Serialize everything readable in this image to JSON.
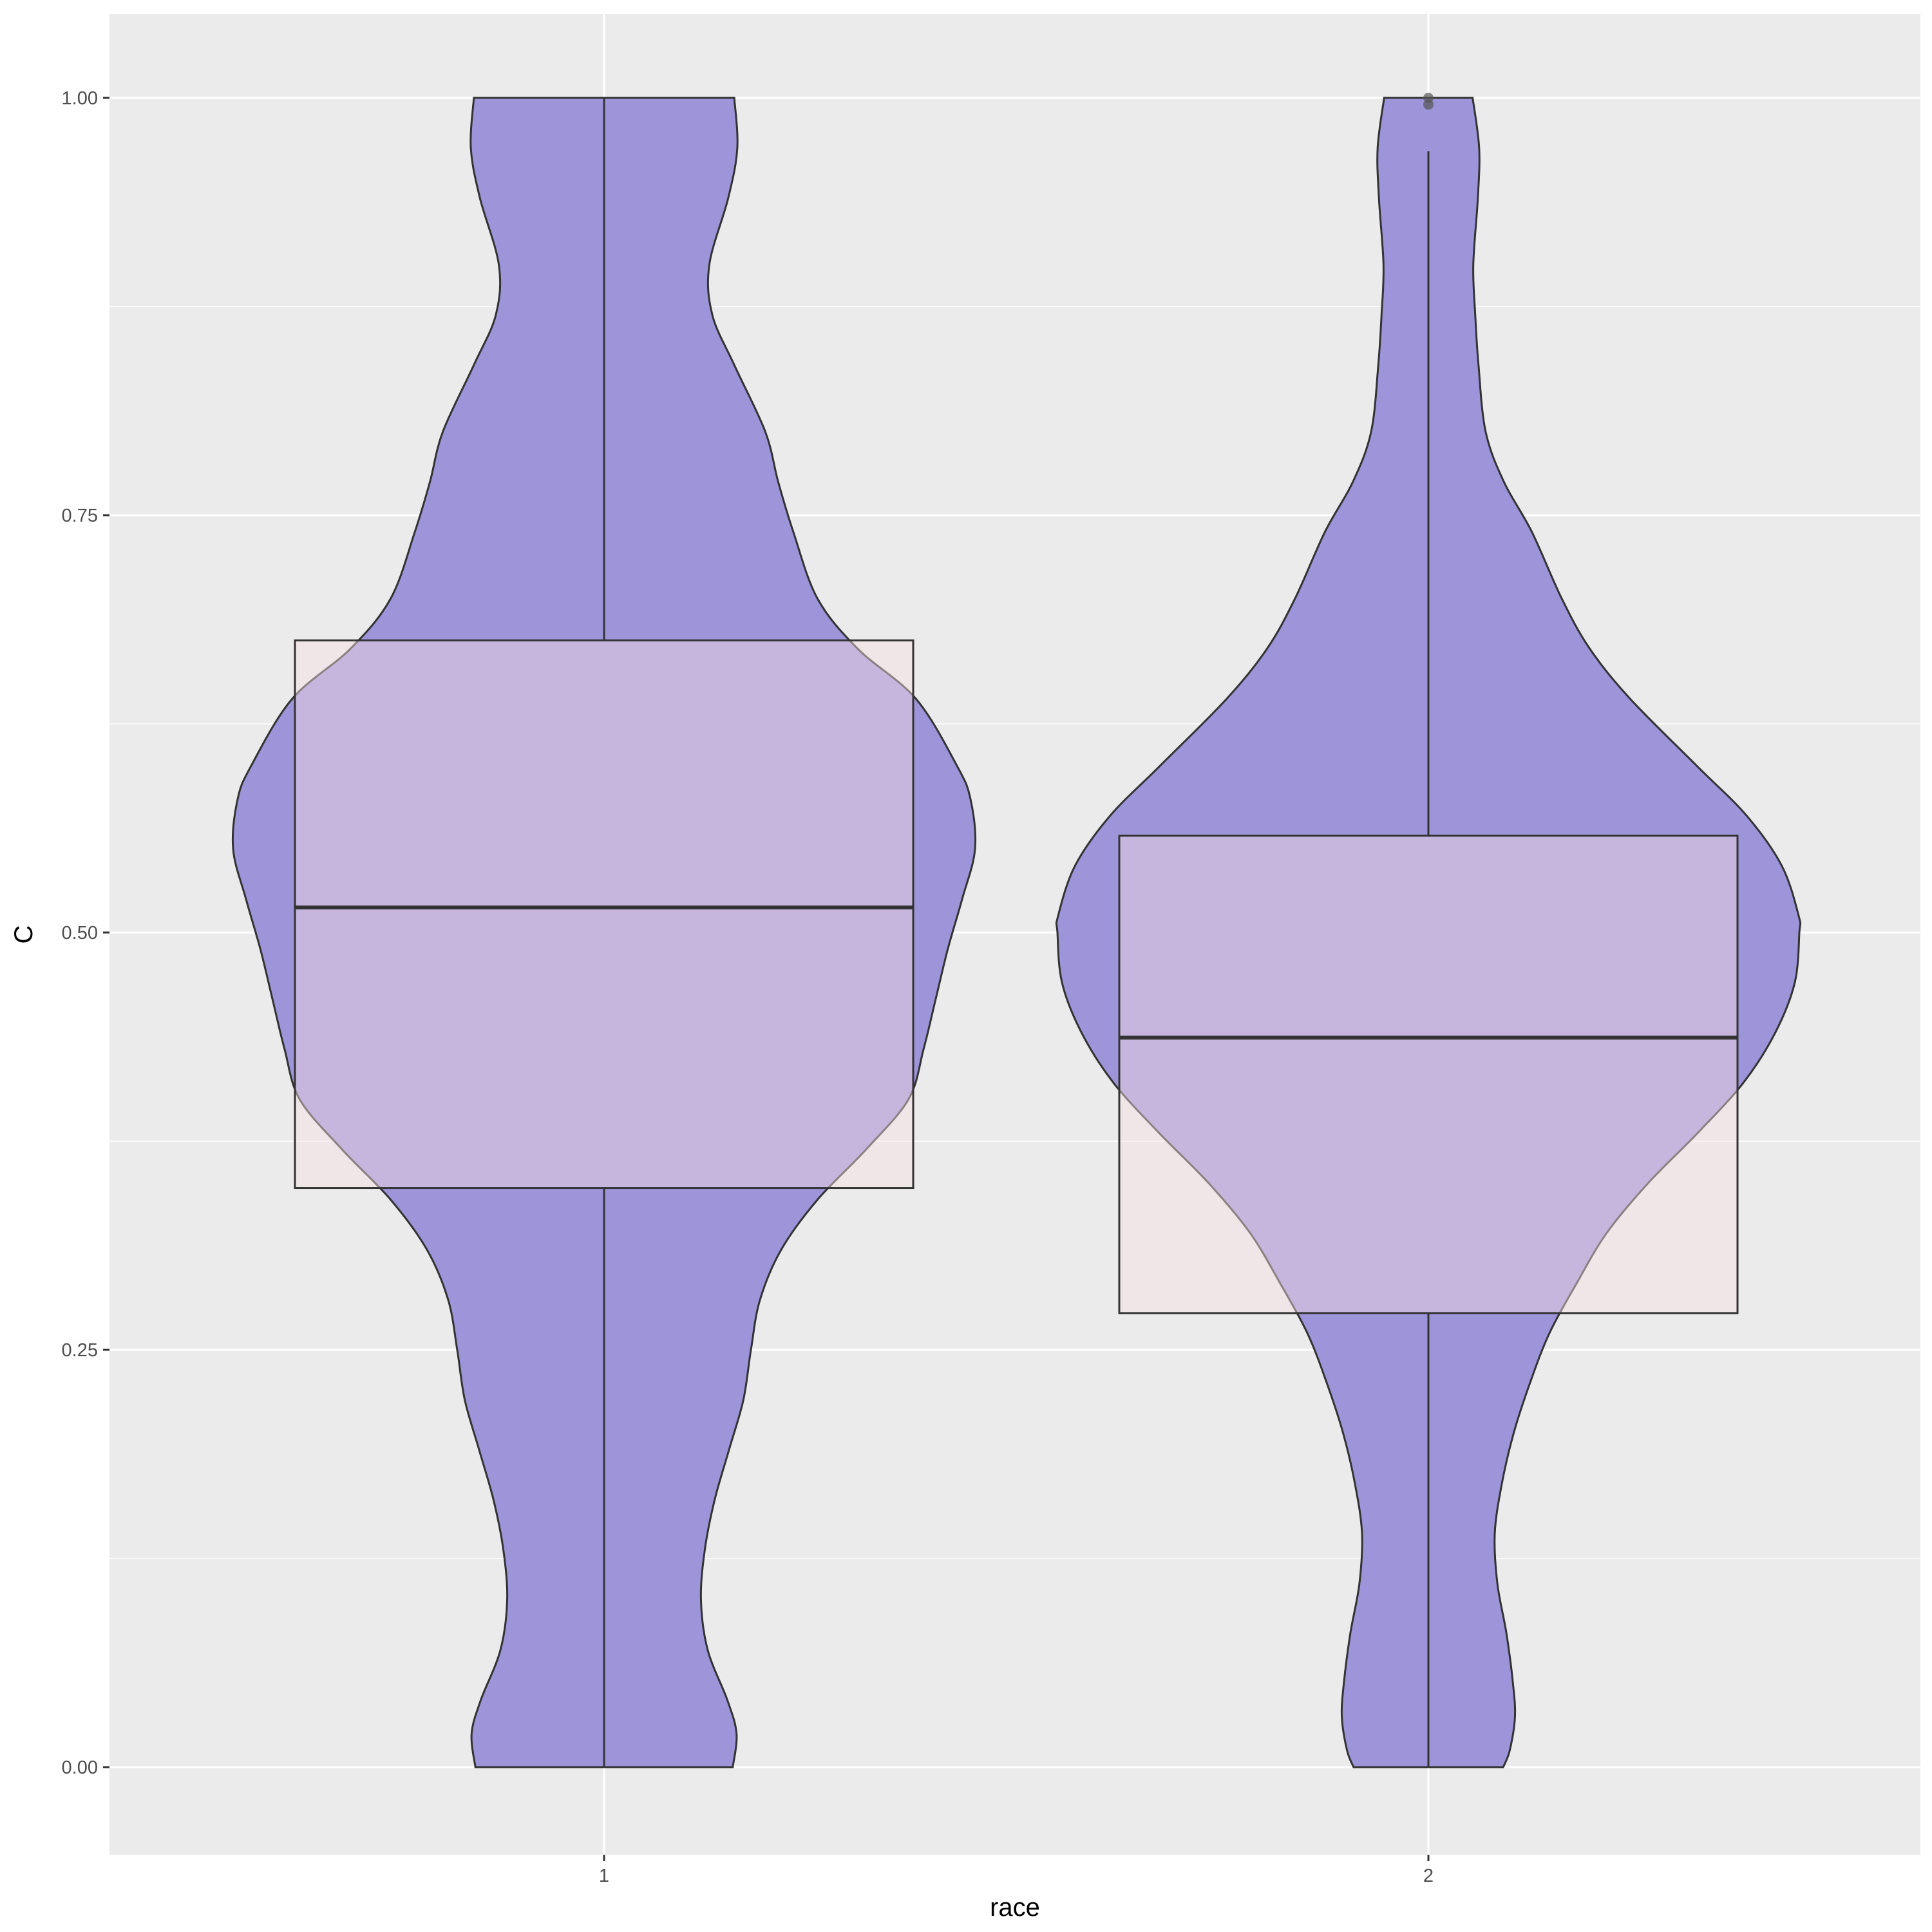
{
  "chart_data": {
    "type": "violin",
    "xlabel": "race",
    "ylabel": "C",
    "categories": [
      "1",
      "2"
    ],
    "yticks": [
      "0.00",
      "0.25",
      "0.50",
      "0.75",
      "1.00"
    ],
    "ytick_values": [
      0,
      0.25,
      0.5,
      0.75,
      1.0
    ],
    "ylim": [
      -0.05,
      1.05
    ],
    "grid": true,
    "boxplots": [
      {
        "category": "1",
        "q1": 0.347,
        "median": 0.515,
        "q3": 0.675,
        "whisker_low": 0.0,
        "whisker_high": 1.0,
        "outliers": []
      },
      {
        "category": "2",
        "q1": 0.272,
        "median": 0.437,
        "q3": 0.558,
        "whisker_low": 0.0,
        "whisker_high": 0.968,
        "outliers": [
          0.996,
          1.0
        ]
      }
    ],
    "violins": [
      {
        "category": "1",
        "density": [
          [
            1.0,
            0.172
          ],
          [
            0.97,
            0.176
          ],
          [
            0.94,
            0.164
          ],
          [
            0.9,
            0.139
          ],
          [
            0.87,
            0.143
          ],
          [
            0.84,
            0.172
          ],
          [
            0.8,
            0.213
          ],
          [
            0.77,
            0.23
          ],
          [
            0.74,
            0.25
          ],
          [
            0.7,
            0.282
          ],
          [
            0.67,
            0.335
          ],
          [
            0.64,
            0.412
          ],
          [
            0.6,
            0.466
          ],
          [
            0.58,
            0.484
          ],
          [
            0.55,
            0.49
          ],
          [
            0.52,
            0.473
          ],
          [
            0.49,
            0.454
          ],
          [
            0.46,
            0.438
          ],
          [
            0.43,
            0.422
          ],
          [
            0.4,
            0.402
          ],
          [
            0.37,
            0.346
          ],
          [
            0.34,
            0.282
          ],
          [
            0.31,
            0.234
          ],
          [
            0.28,
            0.206
          ],
          [
            0.25,
            0.194
          ],
          [
            0.22,
            0.184
          ],
          [
            0.19,
            0.165
          ],
          [
            0.16,
            0.146
          ],
          [
            0.13,
            0.133
          ],
          [
            0.1,
            0.128
          ],
          [
            0.07,
            0.137
          ],
          [
            0.04,
            0.163
          ],
          [
            0.02,
            0.175
          ],
          [
            0.0,
            0.17
          ]
        ]
      },
      {
        "category": "2",
        "density": [
          [
            1.0,
            0.068
          ],
          [
            0.97,
            0.078
          ],
          [
            0.94,
            0.076
          ],
          [
            0.9,
            0.069
          ],
          [
            0.87,
            0.072
          ],
          [
            0.84,
            0.077
          ],
          [
            0.8,
            0.088
          ],
          [
            0.77,
            0.116
          ],
          [
            0.74,
            0.159
          ],
          [
            0.7,
            0.205
          ],
          [
            0.67,
            0.248
          ],
          [
            0.64,
            0.31
          ],
          [
            0.6,
            0.412
          ],
          [
            0.57,
            0.489
          ],
          [
            0.54,
            0.543
          ],
          [
            0.51,
            0.569
          ],
          [
            0.5,
            0.57
          ],
          [
            0.47,
            0.563
          ],
          [
            0.44,
            0.533
          ],
          [
            0.41,
            0.484
          ],
          [
            0.38,
            0.414
          ],
          [
            0.35,
            0.338
          ],
          [
            0.32,
            0.274
          ],
          [
            0.29,
            0.228
          ],
          [
            0.26,
            0.186
          ],
          [
            0.23,
            0.156
          ],
          [
            0.2,
            0.131
          ],
          [
            0.17,
            0.113
          ],
          [
            0.14,
            0.102
          ],
          [
            0.11,
            0.106
          ],
          [
            0.08,
            0.12
          ],
          [
            0.05,
            0.13
          ],
          [
            0.03,
            0.133
          ],
          [
            0.01,
            0.125
          ],
          [
            0.0,
            0.115
          ]
        ]
      }
    ],
    "colors": {
      "panel": "#ebebeb",
      "grid": "#ffffff",
      "violin_fill": "#9d94d9",
      "box_fill": "#f8dfe3",
      "outline": "#333333",
      "outlier": "#555555"
    }
  }
}
